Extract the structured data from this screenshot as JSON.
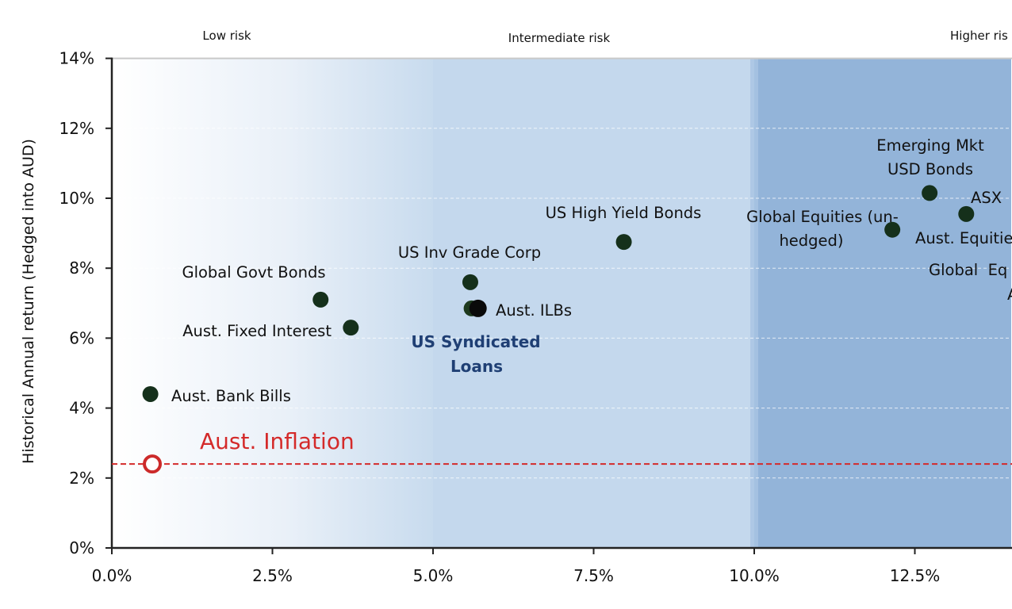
{
  "chart_data": {
    "type": "scatter",
    "title": "",
    "xlabel": "",
    "ylabel": "Historical Annual return (Hedged into AUD)",
    "xlim": [
      0,
      14
    ],
    "ylim": [
      0,
      14
    ],
    "x_ticks": [
      "0.0%",
      "2.5%",
      "5.0%",
      "7.5%",
      "10.0%",
      "12.5%"
    ],
    "x_tick_values": [
      0,
      2.5,
      5,
      7.5,
      10,
      12.5
    ],
    "y_ticks": [
      "0%",
      "2%",
      "4%",
      "6%",
      "8%",
      "10%",
      "12%",
      "14%"
    ],
    "y_tick_values": [
      0,
      2,
      4,
      6,
      8,
      10,
      12,
      14
    ],
    "risk_bands": [
      {
        "label": "Low risk",
        "from": 0,
        "to": 5
      },
      {
        "label": "Intermediate risk",
        "from": 5,
        "to": 10
      },
      {
        "label": "Higher ris",
        "from": 10,
        "to": 14
      }
    ],
    "points": [
      {
        "name": "Aust. Bank Bills",
        "x": 0.6,
        "y": 4.4
      },
      {
        "name": "Global Govt Bonds",
        "x": 3.25,
        "y": 7.1
      },
      {
        "name": "Aust. Fixed Interest",
        "x": 3.72,
        "y": 6.3
      },
      {
        "name": "US Inv Grade Corp",
        "x": 5.58,
        "y": 7.6
      },
      {
        "name": "US Syndicated Loans",
        "x": 5.6,
        "y": 6.85,
        "highlight": true
      },
      {
        "name": "Aust. ILBs",
        "x": 5.7,
        "y": 6.85
      },
      {
        "name": "US High Yield Bonds",
        "x": 7.97,
        "y": 8.75
      },
      {
        "name": "Global Equities (un-hedged)",
        "x": 12.15,
        "y": 9.1
      },
      {
        "name": "Emerging Mkt USD Bonds",
        "x": 12.73,
        "y": 10.15
      },
      {
        "name": "Aust. Equitie",
        "x": 13.3,
        "y": 9.55
      }
    ],
    "partial_labels": [
      "ASX",
      "Global  Eq",
      "A"
    ],
    "reference_line": {
      "name": "Aust. Inflation",
      "y": 2.4,
      "x_marker": 0.63,
      "color": "#d42a2a"
    }
  }
}
